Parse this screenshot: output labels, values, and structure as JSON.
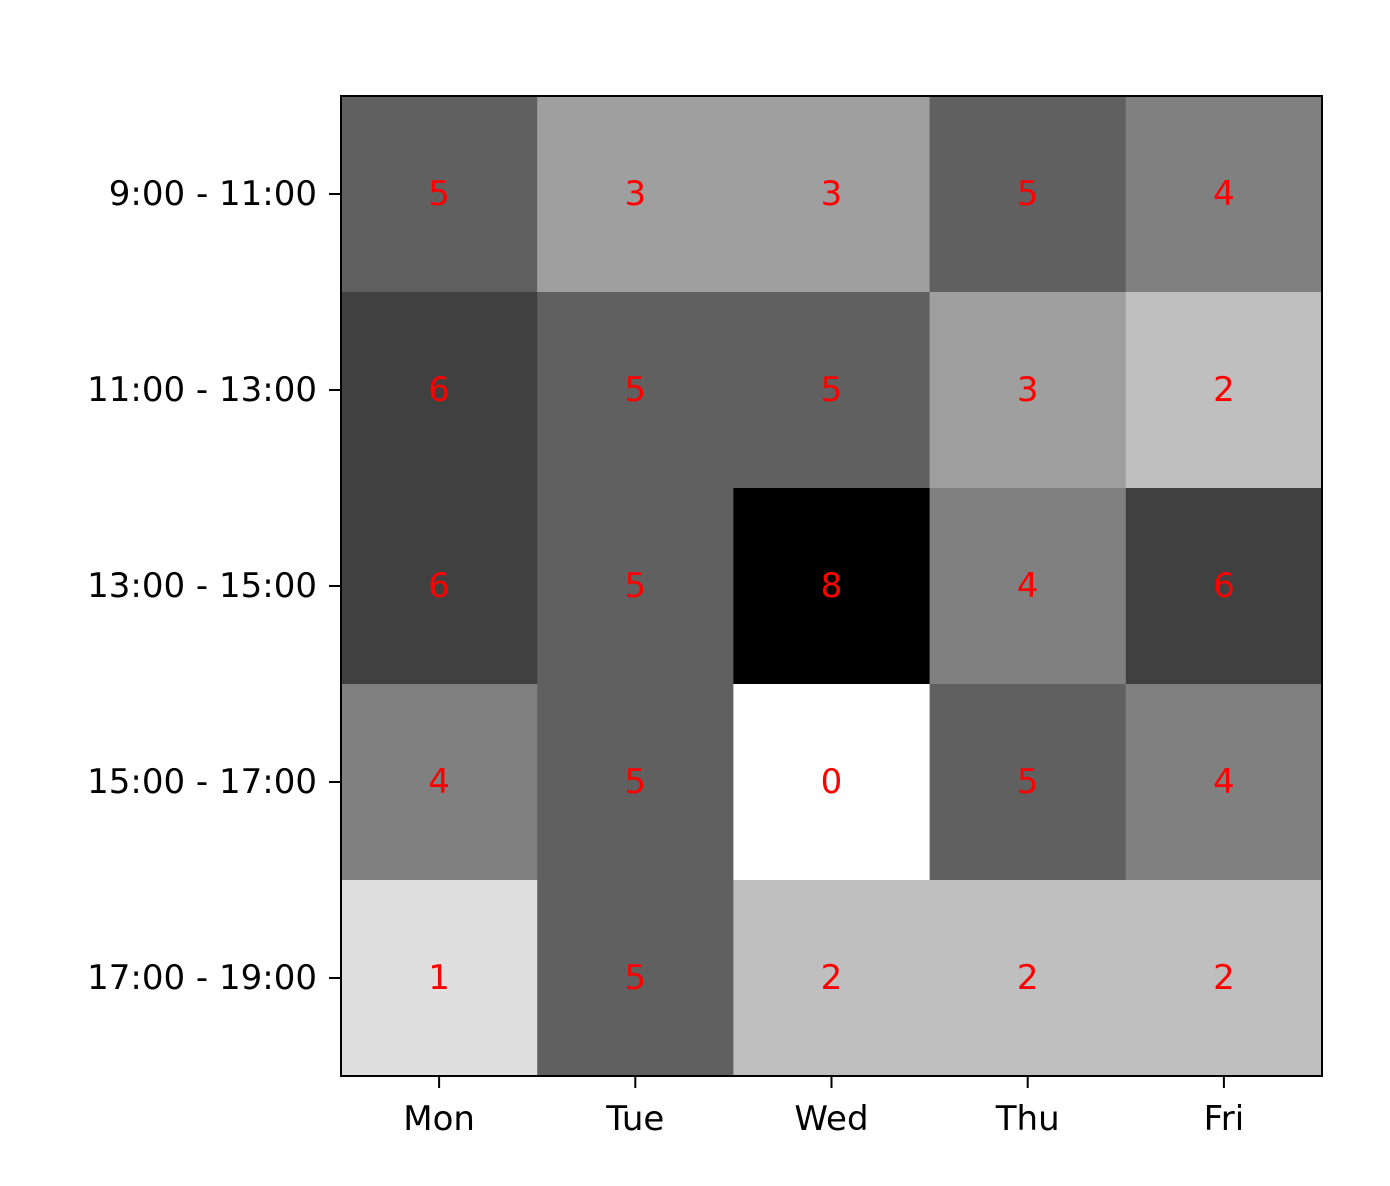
{
  "chart_data": {
    "type": "heatmap",
    "title": "",
    "xlabel": "",
    "ylabel": "",
    "x_categories": [
      "Mon",
      "Tue",
      "Wed",
      "Thu",
      "Fri"
    ],
    "y_categories": [
      "9:00 - 11:00",
      "11:00 - 13:00",
      "13:00 - 15:00",
      "15:00 - 17:00",
      "17:00 - 19:00"
    ],
    "values": [
      [
        5,
        3,
        3,
        5,
        4
      ],
      [
        6,
        5,
        5,
        3,
        2
      ],
      [
        6,
        5,
        8,
        4,
        6
      ],
      [
        4,
        5,
        0,
        5,
        4
      ],
      [
        1,
        5,
        2,
        2,
        2
      ]
    ],
    "colormap": "gray_reversed",
    "value_range": [
      0,
      8
    ],
    "colors": {
      "min": "#ffffff",
      "max": "#000000",
      "annotation": "#ff0000",
      "frame": "#000000"
    },
    "grid": false,
    "legend": "none",
    "colorbar": false,
    "annotations": "cell values"
  }
}
